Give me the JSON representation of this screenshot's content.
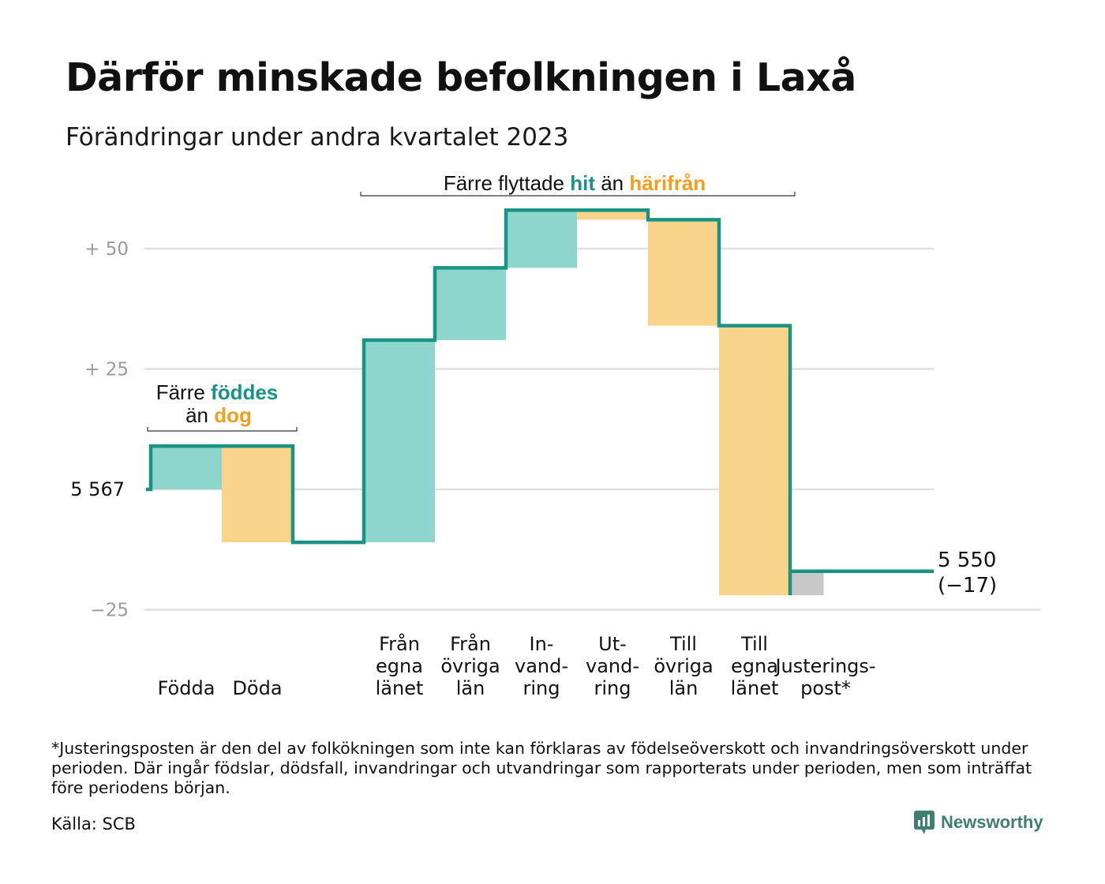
{
  "title": "Därför minskade befolkningen i Laxå",
  "subtitle": "Förändringar under andra kvartalet 2023",
  "footnote": "*Justeringsposten är den del av folkökningen som inte kan förklaras av födelseöverskott och invandringsöverskott under perioden. Där ingår födslar, dödsfall, invandringar och utvandringar som rapporterats under perioden, men som inträffat före periodens början.",
  "source": "Källa: SCB",
  "brand": {
    "name": "Newsworthy",
    "icon": "newsworthy-logo-icon"
  },
  "colors": {
    "increase": "#8ed5cd",
    "decrease": "#fad38b",
    "adjustment": "#c8c8c8",
    "line": "#1a9383",
    "teal_text": "#1a9383",
    "orange_text": "#f29f1f",
    "grid": "#e0e0e0",
    "tick_text": "#9a9a9a"
  },
  "chart_data": {
    "type": "waterfall",
    "start_label": "5  567",
    "start_value": 5567,
    "end_label": "5 550",
    "end_change_label": "(−17)",
    "end_value": 5550,
    "y_ticks": [
      {
        "offset": 50,
        "label": "+  50"
      },
      {
        "offset": 25,
        "label": "+  25"
      },
      {
        "offset": -25,
        "label": "−25"
      }
    ],
    "steps": [
      {
        "label_lines": [
          "Födda"
        ],
        "change": 9,
        "kind": "increase"
      },
      {
        "label_lines": [
          "Döda"
        ],
        "change": -20,
        "kind": "decrease"
      },
      {
        "label_lines": [
          "",
          ""
        ],
        "change": 0,
        "kind": "gap"
      },
      {
        "label_lines": [
          "Från",
          "egna",
          "länet"
        ],
        "change": 42,
        "kind": "increase"
      },
      {
        "label_lines": [
          "Från",
          "övriga",
          "län"
        ],
        "change": 15,
        "kind": "increase"
      },
      {
        "label_lines": [
          "In-",
          "vand-",
          "ring"
        ],
        "change": 12,
        "kind": "increase"
      },
      {
        "label_lines": [
          "Ut-",
          "vand-",
          "ring"
        ],
        "change": -2,
        "kind": "decrease"
      },
      {
        "label_lines": [
          "Till",
          "övriga",
          "län"
        ],
        "change": -22,
        "kind": "decrease"
      },
      {
        "label_lines": [
          "Till",
          "egna",
          "länet"
        ],
        "change": -56,
        "kind": "decrease"
      },
      {
        "label_lines": [
          "Justerings-",
          "post*"
        ],
        "change": 5,
        "kind": "adjustment"
      }
    ],
    "annotations": [
      {
        "parts": [
          "Färre ",
          "föddes"
        ],
        "line2": [
          "än ",
          "dog"
        ]
      },
      {
        "parts": [
          "Färre flyttade ",
          "hit",
          " än ",
          "härifrån"
        ]
      }
    ]
  }
}
